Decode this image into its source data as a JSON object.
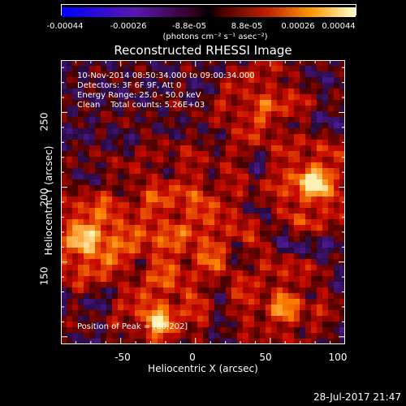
{
  "colorbar": {
    "ticks": [
      "-0.00044",
      "-0.00026",
      "-8.8e-05",
      "8.8e-05",
      "0.00026",
      "0.00044"
    ],
    "units": "(photons cm⁻² s⁻¹ asec⁻²)"
  },
  "chart_data": {
    "type": "heatmap",
    "title": "Reconstructed RHESSI Image",
    "xlabel": "Heliocentric X (arcsec)",
    "ylabel": "Heliocentric Y (arcsec)",
    "xlim": [
      -90,
      100
    ],
    "ylim": [
      95,
      285
    ],
    "xticks": [
      "-50",
      "0",
      "50",
      "100"
    ],
    "yticks": [
      "150",
      "200",
      "250"
    ],
    "annotations": [
      "10-Nov-2014 08:50:34.000 to 09:00:34.000",
      "Detectors: 3F 6F 9F, Att 0",
      "Energy Range: 25.0 - 50.0 keV",
      "Clean    Total counts: 5.26E+03"
    ],
    "peak_label": "Position of Peak = [80,202]",
    "peak": [
      80,
      202
    ],
    "vmin": -0.00044,
    "vmax": 0.00044
  },
  "footer": {
    "timestamp": "28-Jul-2017 21:47"
  }
}
